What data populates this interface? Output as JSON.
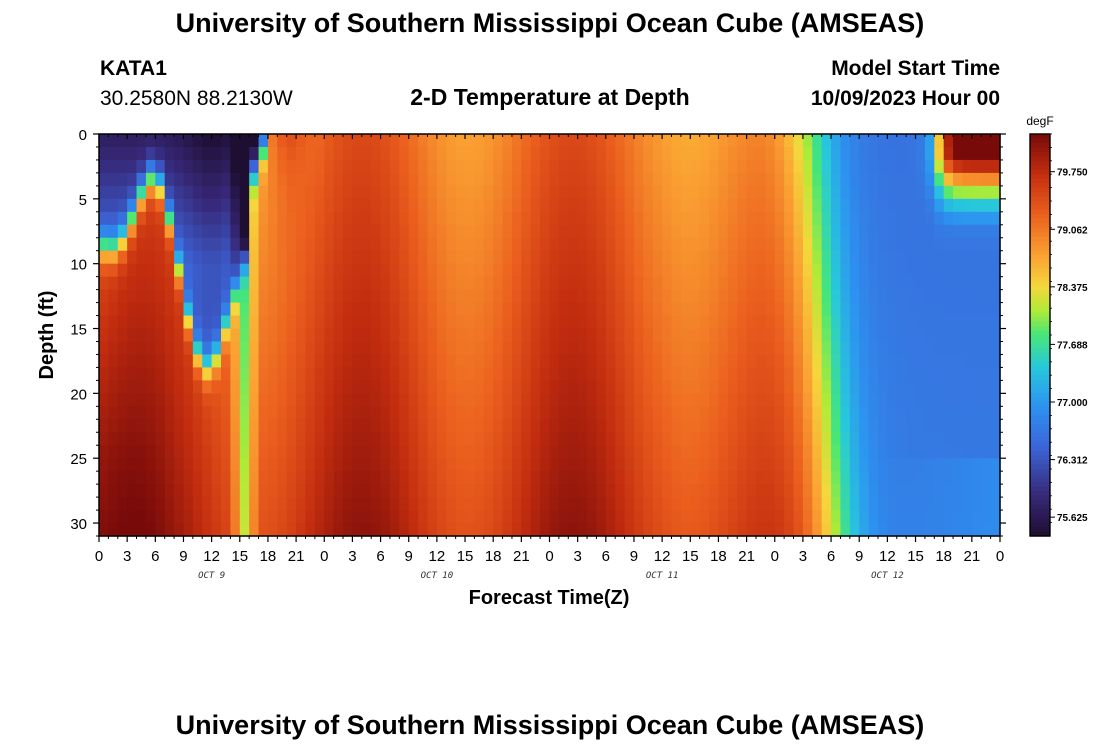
{
  "header": {
    "title": "University of Southern Mississippi Ocean Cube (AMSEAS)",
    "station": "KATA1",
    "coords": "30.2580N  88.2130W",
    "plot_title": "2-D Temperature at Depth",
    "model_label": "Model Start Time",
    "model_time": "10/09/2023 Hour 00"
  },
  "footer": {
    "title": "University of Southern Mississippi Ocean Cube (AMSEAS)"
  },
  "chart_data": {
    "type": "heatmap",
    "title": "2-D Temperature at Depth",
    "xlabel": "Forecast Time(Z)",
    "ylabel": "Depth (ft)",
    "x_range_hours": [
      0,
      96
    ],
    "y_range_ft": [
      0,
      31
    ],
    "x_tick_labels": [
      "0",
      "3",
      "6",
      "9",
      "12",
      "15",
      "18",
      "21",
      "0",
      "3",
      "6",
      "9",
      "12",
      "15",
      "18",
      "21",
      "0",
      "3",
      "6",
      "9",
      "12",
      "15",
      "18",
      "21",
      "0",
      "3",
      "6",
      "9",
      "12",
      "15",
      "18",
      "21",
      "0"
    ],
    "day_labels": [
      {
        "label": "OCT 9",
        "hour": 12
      },
      {
        "label": "OCT 10",
        "hour": 36
      },
      {
        "label": "OCT 11",
        "hour": 60
      },
      {
        "label": "OCT 12",
        "hour": 84
      }
    ],
    "y_ticks": [
      0,
      5,
      10,
      15,
      20,
      25,
      30
    ],
    "colorbar": {
      "unit": "degF",
      "min": 75.4,
      "max": 80.2,
      "tick_labels": [
        "79.750",
        "79.062",
        "78.375",
        "77.688",
        "77.000",
        "76.312",
        "75.625"
      ],
      "tick_values": [
        79.75,
        79.062,
        78.375,
        77.688,
        77.0,
        76.312,
        75.625
      ]
    },
    "field_description": {
      "cold_core_hours": [
        6,
        15
      ],
      "warm_surface_hours": [
        18,
        22
      ],
      "warm_band_hours": [
        16,
        80
      ],
      "cold_after_hour": 80,
      "warm_surface_late_hours": [
        89,
        96
      ]
    }
  }
}
